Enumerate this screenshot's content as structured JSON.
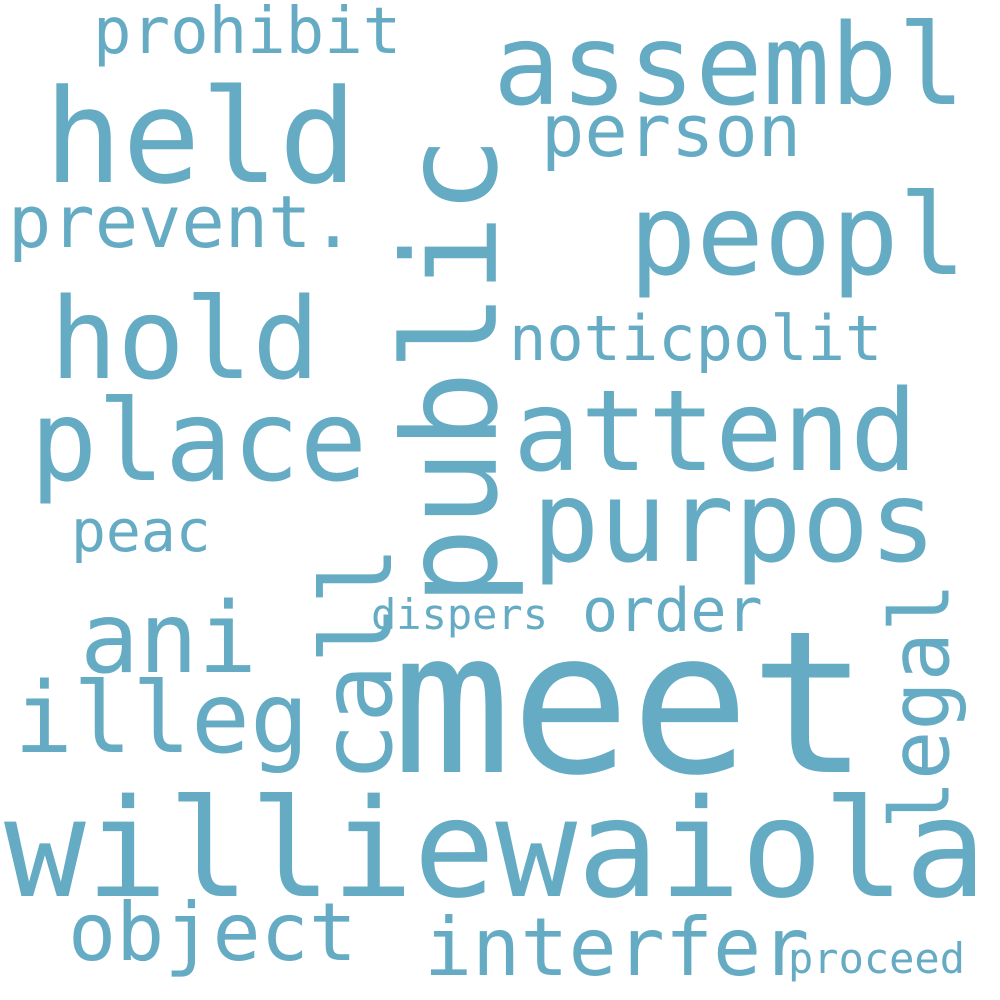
{
  "color": "#65abc4",
  "background": "#ffffff",
  "words": [
    {
      "text": "meet"
    },
    {
      "text": "public"
    },
    {
      "text": "williewaiola"
    },
    {
      "text": "held"
    },
    {
      "text": "assembl"
    },
    {
      "text": "peopl"
    },
    {
      "text": "hold"
    },
    {
      "text": "attend"
    },
    {
      "text": "place"
    },
    {
      "text": "purpos"
    },
    {
      "text": "call"
    },
    {
      "text": "ani"
    },
    {
      "text": "illeg"
    },
    {
      "text": "object"
    },
    {
      "text": "interfer"
    },
    {
      "text": "legal"
    },
    {
      "text": "prevent."
    },
    {
      "text": "person"
    },
    {
      "text": "prohibit"
    },
    {
      "text": "noticpolit"
    },
    {
      "text": "order"
    },
    {
      "text": "peac"
    },
    {
      "text": "dispers"
    },
    {
      "text": "proceed"
    }
  ]
}
